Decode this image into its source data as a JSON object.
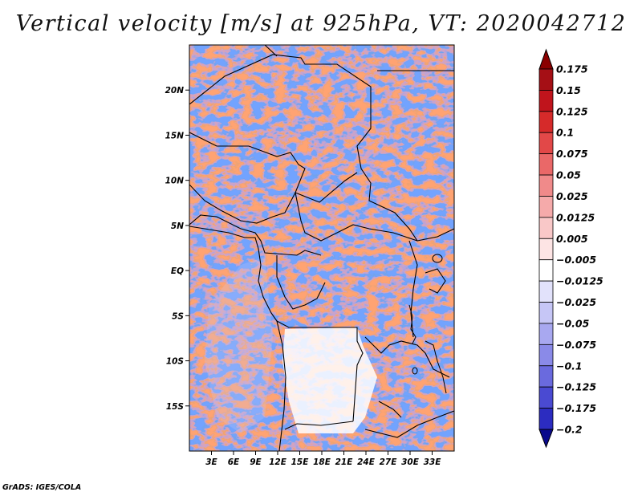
{
  "title": "Vertical velocity [m/s] at 925hPa, VT: 2020042712",
  "credit": "GrADS: IGES/COLA",
  "map": {
    "lon_range": [
      0,
      36
    ],
    "lat_range": [
      -20,
      25
    ],
    "background_color": "#ffffff",
    "lat_labels": [
      {
        "lat": 20,
        "label": "20N"
      },
      {
        "lat": 15,
        "label": "15N"
      },
      {
        "lat": 10,
        "label": "10N"
      },
      {
        "lat": 5,
        "label": "5N"
      },
      {
        "lat": 0,
        "label": "EQ"
      },
      {
        "lat": -5,
        "label": "5S"
      },
      {
        "lat": -10,
        "label": "10S"
      },
      {
        "lat": -15,
        "label": "15S"
      }
    ],
    "lon_labels": [
      {
        "lon": 3,
        "label": "3E"
      },
      {
        "lon": 6,
        "label": "6E"
      },
      {
        "lon": 9,
        "label": "9E"
      },
      {
        "lon": 12,
        "label": "12E"
      },
      {
        "lon": 15,
        "label": "15E"
      },
      {
        "lon": 18,
        "label": "18E"
      },
      {
        "lon": 21,
        "label": "21E"
      },
      {
        "lon": 24,
        "label": "24E"
      },
      {
        "lon": 27,
        "label": "27E"
      },
      {
        "lon": 30,
        "label": "30E"
      },
      {
        "lon": 33,
        "label": "33E"
      }
    ]
  },
  "colorbar": {
    "levels": [
      {
        "label": "0.175",
        "color": "#a50f15"
      },
      {
        "label": "0.15",
        "color": "#c0141c"
      },
      {
        "label": "0.125",
        "color": "#d62a2a"
      },
      {
        "label": "0.1",
        "color": "#e24848"
      },
      {
        "label": "0.075",
        "color": "#ea6868"
      },
      {
        "label": "0.05",
        "color": "#f08a8a"
      },
      {
        "label": "0.025",
        "color": "#f5aaaa"
      },
      {
        "label": "0.0125",
        "color": "#f9c8c8"
      },
      {
        "label": "0.005",
        "color": "#fde4e4"
      },
      {
        "label": "−0.005",
        "color": "#ffffff"
      },
      {
        "label": "−0.0125",
        "color": "#e2e2fb"
      },
      {
        "label": "−0.025",
        "color": "#c6c6f6"
      },
      {
        "label": "−0.05",
        "color": "#a8a8f0"
      },
      {
        "label": "−0.075",
        "color": "#8a8ae8"
      },
      {
        "label": "−0.1",
        "color": "#6a6ade"
      },
      {
        "label": "−0.125",
        "color": "#4a4ad2"
      },
      {
        "label": "−0.175",
        "color": "#2c2cc0"
      },
      {
        "label": "−0.2",
        "color": "#1616a8"
      }
    ],
    "top_color": "#8b0000",
    "bottom_color": "#0a0a8c"
  }
}
